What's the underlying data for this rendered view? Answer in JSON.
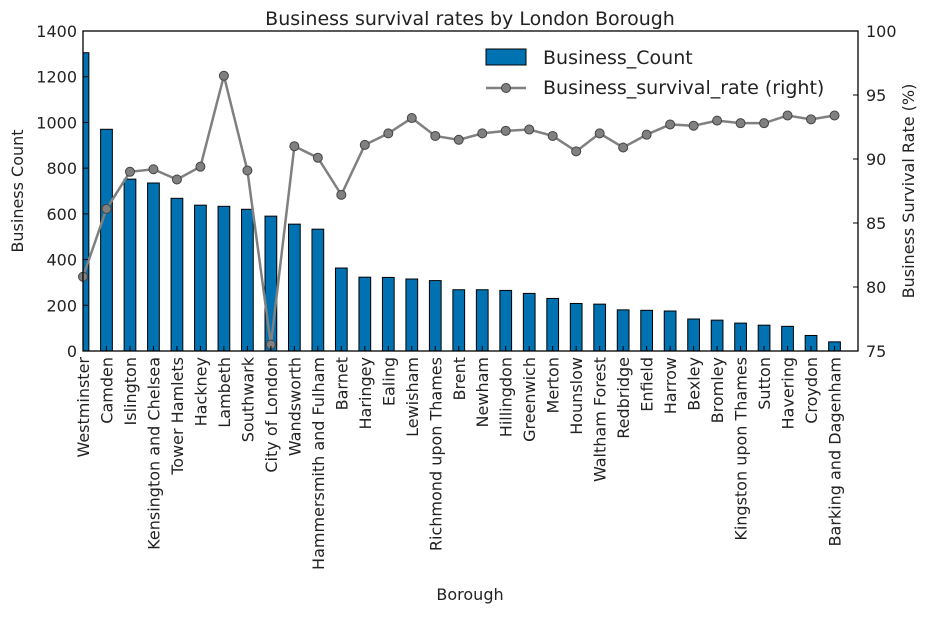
{
  "chart_data": {
    "type": "bar",
    "title": "Business survival rates by London Borough",
    "xlabel": "Borough",
    "ylabel": "Business Count",
    "y2label": "Business Survival Rate (%)",
    "ylim": [
      0,
      1400
    ],
    "y2lim": [
      75,
      100
    ],
    "yticks": [
      0,
      200,
      400,
      600,
      800,
      1000,
      1200,
      1400
    ],
    "y2ticks": [
      75,
      80,
      85,
      90,
      95,
      100
    ],
    "grid": false,
    "legend_position": "top-right",
    "categories": [
      "Westminster",
      "Camden",
      "Islington",
      "Kensington and Chelsea",
      "Tower Hamlets",
      "Hackney",
      "Lambeth",
      "Southwark",
      "City of London",
      "Wandsworth",
      "Hammersmith and Fulham",
      "Barnet",
      "Haringey",
      "Ealing",
      "Lewisham",
      "Richmond upon Thames",
      "Brent",
      "Newham",
      "Hillingdon",
      "Greenwich",
      "Merton",
      "Hounslow",
      "Waltham Forest",
      "Redbridge",
      "Enfield",
      "Harrow",
      "Bexley",
      "Bromley",
      "Kingston upon Thames",
      "Sutton",
      "Havering",
      "Croydon",
      "Barking and Dagenham"
    ],
    "series": [
      {
        "name": "Business_Count",
        "kind": "bar",
        "axis": "left",
        "color": "#0072b2",
        "values": [
          1305,
          970,
          752,
          735,
          668,
          638,
          633,
          620,
          590,
          555,
          533,
          363,
          323,
          322,
          315,
          308,
          268,
          268,
          265,
          252,
          230,
          208,
          205,
          180,
          178,
          175,
          140,
          135,
          122,
          113,
          108,
          68,
          40
        ]
      },
      {
        "name": "Business_survival_rate (right)",
        "kind": "line",
        "axis": "right",
        "color": "#808080",
        "values": [
          80.8,
          86.1,
          89.0,
          89.2,
          88.4,
          89.4,
          96.5,
          89.1,
          75.5,
          91.0,
          90.1,
          87.2,
          91.1,
          92.0,
          93.2,
          91.8,
          91.5,
          92.0,
          92.2,
          92.3,
          91.8,
          90.6,
          92.0,
          90.9,
          91.9,
          92.7,
          92.6,
          93.0,
          92.8,
          92.8,
          93.4,
          93.1,
          93.4
        ]
      }
    ]
  }
}
